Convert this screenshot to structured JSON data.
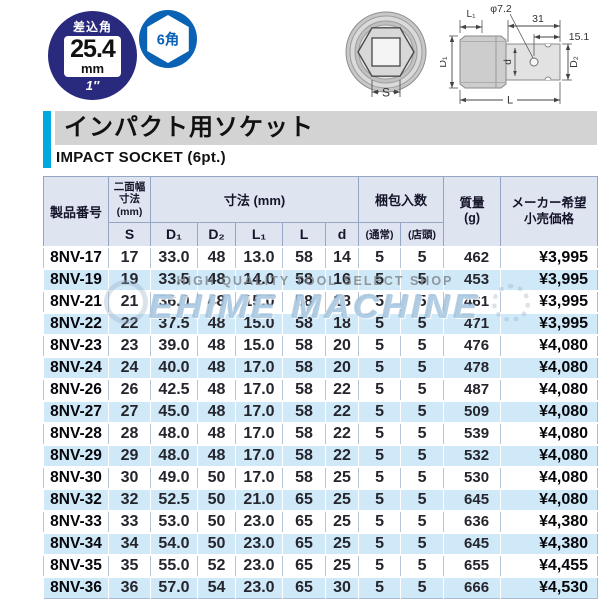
{
  "badges": {
    "drive": {
      "top": "差込角",
      "value": "25.4",
      "unit": "mm",
      "inch": "1″"
    },
    "hex": {
      "label": "6角"
    }
  },
  "diagram": {
    "front": {
      "dim_s": "S"
    },
    "side": {
      "hole": "φ7.2",
      "len_top": "31",
      "len_right": "15.1",
      "l1": "L₁",
      "d1": "D₁",
      "d2": "D₂",
      "d": "d",
      "l": "L"
    }
  },
  "header": {
    "title": "インパクト用ソケット",
    "subtitle": "IMPACT SOCKET (6pt.)"
  },
  "watermark": {
    "tagline": "HIGH QUALITY TOOL SELECT SHOP",
    "brand": "EHIME MACHINE"
  },
  "table": {
    "headers": {
      "product": "製品番号",
      "width_group": "二面幅\n寸法\n(mm)",
      "dims_group": "寸法 (mm)",
      "pack_group": "梱包入数",
      "mass": "質量\n(g)",
      "price": "メーカー希望\n小売価格",
      "sub": [
        "S",
        "D₁",
        "D₂",
        "L₁",
        "L",
        "d",
        "(通常)",
        "(店頭)"
      ]
    },
    "rows": [
      [
        "8NV-17",
        "17",
        "33.0",
        "48",
        "13.0",
        "58",
        "14",
        "5",
        "5",
        "462",
        "¥3,995"
      ],
      [
        "8NV-19",
        "19",
        "33.5",
        "48",
        "14.0",
        "58",
        "16",
        "5",
        "5",
        "453",
        "¥3,995"
      ],
      [
        "8NV-21",
        "21",
        "36.0",
        "48",
        "15.0",
        "58",
        "18",
        "5",
        "5",
        "461",
        "¥3,995"
      ],
      [
        "8NV-22",
        "22",
        "37.5",
        "48",
        "15.0",
        "58",
        "18",
        "5",
        "5",
        "471",
        "¥3,995"
      ],
      [
        "8NV-23",
        "23",
        "39.0",
        "48",
        "15.0",
        "58",
        "20",
        "5",
        "5",
        "476",
        "¥4,080"
      ],
      [
        "8NV-24",
        "24",
        "40.0",
        "48",
        "17.0",
        "58",
        "20",
        "5",
        "5",
        "478",
        "¥4,080"
      ],
      [
        "8NV-26",
        "26",
        "42.5",
        "48",
        "17.0",
        "58",
        "22",
        "5",
        "5",
        "487",
        "¥4,080"
      ],
      [
        "8NV-27",
        "27",
        "45.0",
        "48",
        "17.0",
        "58",
        "22",
        "5",
        "5",
        "509",
        "¥4,080"
      ],
      [
        "8NV-28",
        "28",
        "48.0",
        "48",
        "17.0",
        "58",
        "22",
        "5",
        "5",
        "539",
        "¥4,080"
      ],
      [
        "8NV-29",
        "29",
        "48.0",
        "48",
        "17.0",
        "58",
        "22",
        "5",
        "5",
        "532",
        "¥4,080"
      ],
      [
        "8NV-30",
        "30",
        "49.0",
        "50",
        "17.0",
        "58",
        "25",
        "5",
        "5",
        "530",
        "¥4,080"
      ],
      [
        "8NV-32",
        "32",
        "52.5",
        "50",
        "21.0",
        "65",
        "25",
        "5",
        "5",
        "645",
        "¥4,080"
      ],
      [
        "8NV-33",
        "33",
        "53.0",
        "50",
        "23.0",
        "65",
        "25",
        "5",
        "5",
        "636",
        "¥4,380"
      ],
      [
        "8NV-34",
        "34",
        "54.0",
        "50",
        "23.0",
        "65",
        "25",
        "5",
        "5",
        "645",
        "¥4,380"
      ],
      [
        "8NV-35",
        "35",
        "55.0",
        "52",
        "23.0",
        "65",
        "25",
        "5",
        "5",
        "655",
        "¥4,455"
      ],
      [
        "8NV-36",
        "36",
        "57.0",
        "54",
        "23.0",
        "65",
        "30",
        "5",
        "5",
        "666",
        "¥4,530"
      ]
    ]
  },
  "colors": {
    "navy": "#29297d",
    "badge_blue": "#0a62b5",
    "accent_cyan": "#00a9e0",
    "title_bg": "#d3d3d3",
    "table_header_bg": "#dfe4f1",
    "stripe_blue": "#cfe9f9",
    "header_border": "#94a6c4",
    "watermark_blue": "#a7c7e0"
  }
}
